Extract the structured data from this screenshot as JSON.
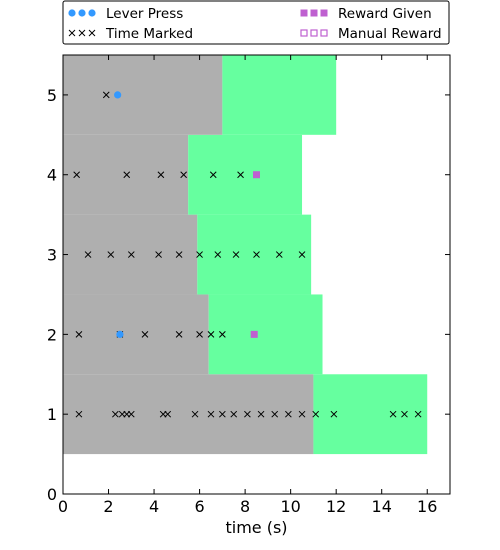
{
  "chart_data": {
    "type": "scatter",
    "xlabel": "time (s)",
    "ylabel": "",
    "xlim": [
      0,
      17
    ],
    "ylim": [
      0,
      5.5
    ],
    "xticks": [
      0,
      2,
      4,
      6,
      8,
      10,
      12,
      14,
      16
    ],
    "yticks": [
      0,
      1,
      2,
      3,
      4,
      5
    ],
    "grid": false,
    "legend": {
      "placement": "top, outside plot (two columns)",
      "entries": [
        {
          "name": "Lever Press",
          "marker": "circle",
          "color": "#3399ff"
        },
        {
          "name": "Reward Given",
          "marker": "square",
          "color": "#bf60d0"
        },
        {
          "name": "Time Marked",
          "marker": "x",
          "color": "#000000"
        },
        {
          "name": "Manual Reward",
          "marker": "open-square",
          "color": "#bf60d0"
        }
      ]
    },
    "regions": [
      {
        "trial": 1,
        "gray": [
          0,
          11.0
        ],
        "green": [
          11.0,
          16.0
        ]
      },
      {
        "trial": 2,
        "gray": [
          0,
          6.4
        ],
        "green": [
          6.4,
          11.4
        ]
      },
      {
        "trial": 3,
        "gray": [
          0,
          5.9
        ],
        "green": [
          5.9,
          10.9
        ]
      },
      {
        "trial": 4,
        "gray": [
          0,
          5.5
        ],
        "green": [
          5.5,
          10.5
        ]
      },
      {
        "trial": 5,
        "gray": [
          0,
          7.0
        ],
        "green": [
          7.0,
          12.0
        ]
      }
    ],
    "colors": {
      "gray": "#afafaf",
      "green": "#66ff9f"
    },
    "series": [
      {
        "name": "Time Marked",
        "marker": "x",
        "color": "#000000",
        "points": [
          [
            0.7,
            1
          ],
          [
            2.3,
            1
          ],
          [
            2.6,
            1
          ],
          [
            2.8,
            1
          ],
          [
            3.0,
            1
          ],
          [
            4.4,
            1
          ],
          [
            4.6,
            1
          ],
          [
            5.8,
            1
          ],
          [
            6.5,
            1
          ],
          [
            7.0,
            1
          ],
          [
            7.5,
            1
          ],
          [
            8.1,
            1
          ],
          [
            8.7,
            1
          ],
          [
            9.3,
            1
          ],
          [
            9.9,
            1
          ],
          [
            10.5,
            1
          ],
          [
            11.1,
            1
          ],
          [
            11.9,
            1
          ],
          [
            14.5,
            1
          ],
          [
            15.0,
            1
          ],
          [
            15.6,
            1
          ],
          [
            0.7,
            2
          ],
          [
            2.5,
            2
          ],
          [
            3.6,
            2
          ],
          [
            5.1,
            2
          ],
          [
            6.0,
            2
          ],
          [
            6.5,
            2
          ],
          [
            7.0,
            2
          ],
          [
            1.1,
            3
          ],
          [
            2.1,
            3
          ],
          [
            3.0,
            3
          ],
          [
            4.2,
            3
          ],
          [
            5.1,
            3
          ],
          [
            6.0,
            3
          ],
          [
            6.8,
            3
          ],
          [
            7.6,
            3
          ],
          [
            8.5,
            3
          ],
          [
            9.5,
            3
          ],
          [
            10.5,
            3
          ],
          [
            0.6,
            4
          ],
          [
            2.8,
            4
          ],
          [
            4.3,
            4
          ],
          [
            5.3,
            4
          ],
          [
            6.6,
            4
          ],
          [
            7.8,
            4
          ],
          [
            1.9,
            5
          ]
        ]
      },
      {
        "name": "Lever Press",
        "marker": "circle",
        "color": "#3399ff",
        "points": [
          [
            2.4,
            5
          ],
          [
            2.5,
            2
          ]
        ]
      },
      {
        "name": "Reward Given",
        "marker": "square",
        "color": "#bf60d0",
        "points": [
          [
            8.5,
            4
          ],
          [
            8.4,
            2
          ]
        ]
      },
      {
        "name": "Manual Reward",
        "marker": "open-square",
        "color": "#bf60d0",
        "points": []
      }
    ]
  }
}
